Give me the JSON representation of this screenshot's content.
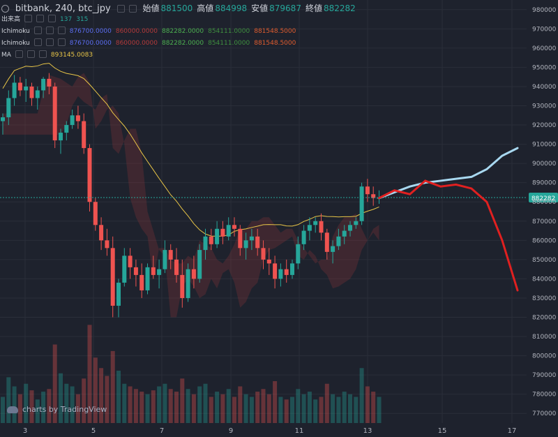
{
  "header": {
    "symbol_line": "bitbank, 240, btc_jpy",
    "ohlc": [
      {
        "label": "始値",
        "value": "881500"
      },
      {
        "label": "高値",
        "value": "884998"
      },
      {
        "label": "安値",
        "value": "879687"
      },
      {
        "label": "終値",
        "value": "882282"
      }
    ]
  },
  "legends": [
    {
      "name": "出来高",
      "values": [
        "137",
        "315"
      ],
      "colors": [
        "#26a69a",
        "#26a69a"
      ]
    },
    {
      "name": "Ichimoku",
      "values": [
        "876700.0000",
        "860000.0000",
        "882282.0000",
        "854111.0000",
        "881548.5000"
      ],
      "colors": [
        "#5b6df0",
        "#b23a3a",
        "#4caf50",
        "#3f8f3f",
        "#e05c2e"
      ]
    },
    {
      "name": "Ichimoku",
      "values": [
        "876700.0000",
        "860000.0000",
        "882282.0000",
        "854111.0000",
        "881548.5000"
      ],
      "colors": [
        "#5b6df0",
        "#b23a3a",
        "#4caf50",
        "#3f8f3f",
        "#e05c2e"
      ]
    },
    {
      "name": "MA",
      "values": [
        "893145.0083"
      ],
      "colors": [
        "#e8c547"
      ]
    }
  ],
  "watermark": "charts by TradingView",
  "price_tag": "882282",
  "chart_data": {
    "type": "candlestick",
    "x_ticks": [
      "3",
      "5",
      "7",
      "9",
      "11",
      "13",
      "15",
      "17"
    ],
    "y_ticks": [
      "980000",
      "970000",
      "960000",
      "950000",
      "940000",
      "930000",
      "920000",
      "910000",
      "900000",
      "890000",
      "880000",
      "870000",
      "860000",
      "850000",
      "840000",
      "830000",
      "820000",
      "810000",
      "800000",
      "790000",
      "780000",
      "770000"
    ],
    "ylim": [
      765000,
      985000
    ],
    "last_price": 882282,
    "candles": [
      [
        922,
        926,
        915,
        924
      ],
      [
        924,
        938,
        920,
        934
      ],
      [
        934,
        946,
        930,
        942
      ],
      [
        942,
        945,
        935,
        938
      ],
      [
        938,
        944,
        932,
        940
      ],
      [
        940,
        942,
        930,
        934
      ],
      [
        934,
        940,
        928,
        938
      ],
      [
        938,
        945,
        934,
        944
      ],
      [
        944,
        947,
        936,
        940
      ],
      [
        940,
        942,
        908,
        912
      ],
      [
        912,
        918,
        905,
        916
      ],
      [
        916,
        922,
        912,
        920
      ],
      [
        920,
        928,
        918,
        925
      ],
      [
        925,
        930,
        918,
        922
      ],
      [
        922,
        926,
        905,
        908
      ],
      [
        908,
        910,
        875,
        880
      ],
      [
        880,
        882,
        865,
        868
      ],
      [
        868,
        872,
        855,
        860
      ],
      [
        860,
        866,
        852,
        856
      ],
      [
        856,
        862,
        820,
        826
      ],
      [
        826,
        840,
        820,
        838
      ],
      [
        838,
        856,
        836,
        852
      ],
      [
        852,
        856,
        840,
        846
      ],
      [
        846,
        850,
        836,
        842
      ],
      [
        842,
        848,
        830,
        834
      ],
      [
        834,
        848,
        832,
        846
      ],
      [
        846,
        852,
        840,
        842
      ],
      [
        842,
        850,
        835,
        845
      ],
      [
        845,
        860,
        843,
        855
      ],
      [
        855,
        858,
        845,
        850
      ],
      [
        850,
        856,
        838,
        842
      ],
      [
        842,
        850,
        825,
        830
      ],
      [
        830,
        848,
        828,
        845
      ],
      [
        845,
        852,
        835,
        840
      ],
      [
        840,
        858,
        838,
        855
      ],
      [
        855,
        866,
        850,
        862
      ],
      [
        862,
        866,
        855,
        858
      ],
      [
        858,
        870,
        856,
        866
      ],
      [
        866,
        870,
        858,
        862
      ],
      [
        862,
        872,
        860,
        868
      ],
      [
        868,
        872,
        862,
        866
      ],
      [
        866,
        868,
        852,
        856
      ],
      [
        856,
        864,
        850,
        860
      ],
      [
        860,
        866,
        855,
        862
      ],
      [
        862,
        866,
        852,
        856
      ],
      [
        856,
        860,
        845,
        850
      ],
      [
        850,
        856,
        842,
        848
      ],
      [
        848,
        852,
        835,
        840
      ],
      [
        840,
        848,
        836,
        845
      ],
      [
        845,
        850,
        838,
        842
      ],
      [
        842,
        850,
        840,
        848
      ],
      [
        848,
        862,
        845,
        858
      ],
      [
        858,
        868,
        855,
        865
      ],
      [
        865,
        872,
        860,
        868
      ],
      [
        868,
        872,
        864,
        870
      ],
      [
        870,
        874,
        860,
        864
      ],
      [
        864,
        866,
        850,
        854
      ],
      [
        854,
        860,
        848,
        857
      ],
      [
        857,
        866,
        855,
        862
      ],
      [
        862,
        868,
        858,
        865
      ],
      [
        865,
        870,
        862,
        868
      ],
      [
        868,
        872,
        866,
        870
      ],
      [
        870,
        890,
        868,
        888
      ],
      [
        888,
        892,
        880,
        884
      ],
      [
        884,
        888,
        878,
        882
      ],
      [
        882,
        886,
        879,
        882
      ]
    ],
    "volumes": [
      20,
      35,
      28,
      22,
      30,
      25,
      18,
      24,
      26,
      60,
      38,
      30,
      28,
      22,
      34,
      75,
      50,
      42,
      36,
      55,
      40,
      30,
      28,
      26,
      24,
      22,
      25,
      28,
      30,
      26,
      24,
      34,
      26,
      22,
      28,
      30,
      20,
      24,
      22,
      26,
      20,
      28,
      22,
      20,
      24,
      26,
      22,
      32,
      20,
      18,
      20,
      26,
      22,
      24,
      18,
      20,
      30,
      22,
      20,
      24,
      22,
      20,
      42,
      28,
      24,
      20
    ],
    "projection": {
      "upper": [
        [
          882,
          882
        ],
        [
          885,
          885
        ],
        [
          888,
          888
        ],
        [
          890,
          890
        ],
        [
          891,
          891
        ],
        [
          892,
          892
        ],
        [
          893,
          893
        ],
        [
          897,
          897
        ],
        [
          904,
          904
        ],
        [
          908,
          908
        ]
      ],
      "lower": [
        [
          882,
          882
        ],
        [
          886,
          886
        ],
        [
          884,
          884
        ],
        [
          891,
          891
        ],
        [
          888,
          888
        ],
        [
          889,
          889
        ],
        [
          887,
          887
        ],
        [
          880,
          880
        ],
        [
          860,
          860
        ],
        [
          834,
          834
        ]
      ]
    }
  }
}
